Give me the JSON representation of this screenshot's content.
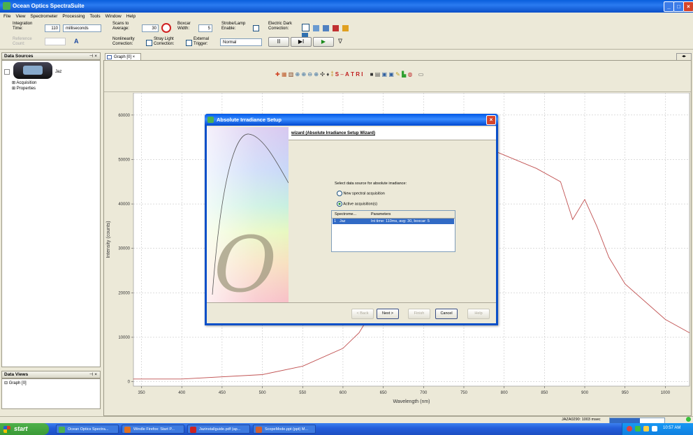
{
  "window": {
    "title": "Ocean Optics SpectraSuite",
    "controls": [
      "_",
      "□",
      "×"
    ]
  },
  "menu": [
    "File",
    "View",
    "Spectrometer",
    "Processing",
    "Tools",
    "Window",
    "Help"
  ],
  "toolbar": {
    "integration_label": "Integration\nTime:",
    "integration_value": "110",
    "integration_unit": "milliseconds",
    "scans_label": "Scans to\nAverage:",
    "scans_value": "30",
    "boxcar_label": "Boxcar\nWidth:",
    "boxcar_value": "5",
    "strobe_label": "Strobe/Lamp\nEnable:",
    "dark_label": "Electric Dark\nCorrection:",
    "nonlin_label": "Nonlinearity\nCorrection:",
    "stray_label": "Stray Light\nCorrection:",
    "trigger_label": "External\nTrigger:",
    "trigger_value": "Normal",
    "pause": "II",
    "step": "▶I",
    "play": "▶",
    "faded_label": "Reference\nCount:"
  },
  "data_sources": {
    "title": "Data Sources",
    "device": "Jaz",
    "items": [
      "Acquisition",
      "Properties"
    ]
  },
  "data_views": {
    "title": "Data Views",
    "items": [
      "Graph [0]"
    ]
  },
  "graph_tab": {
    "label": "Graph [0]"
  },
  "graph_toolbar_extra": "S",
  "graph_toolbar_text": [
    "A",
    "T",
    "R",
    "I"
  ],
  "chart_data": {
    "type": "line",
    "xlabel": "Wavelength (nm)",
    "ylabel": "Intensity (counts)",
    "xlim": [
      340,
      1030
    ],
    "ylim": [
      -1000,
      65000
    ],
    "x_ticks": [
      350,
      400,
      450,
      500,
      550,
      600,
      650,
      700,
      750,
      800,
      850,
      900,
      950,
      1000
    ],
    "y_ticks": [
      0,
      10000,
      20000,
      30000,
      40000,
      50000,
      60000
    ],
    "y_tick_labels": [
      "0",
      "10000",
      "20000",
      "30000",
      "40000",
      "50000",
      "60000"
    ],
    "grid": true,
    "series": [
      {
        "color": "#c05050",
        "x": [
          340,
          400,
          500,
          550,
          600,
          620,
          640,
          660,
          680,
          700,
          760,
          800,
          840,
          870,
          885,
          900,
          915,
          930,
          950,
          1000,
          1030
        ],
        "y": [
          600,
          600,
          1600,
          3500,
          7500,
          11000,
          17000,
          25000,
          35000,
          46000,
          54000,
          51000,
          48000,
          45000,
          36500,
          41000,
          35000,
          28000,
          22000,
          14000,
          11000
        ]
      }
    ]
  },
  "dialog": {
    "title": "Absolute Irradiance Setup",
    "header": "wizard (Absolute Irradiance Setup Wizard)",
    "prompt": "Select data source for absolute irradiance:",
    "option1": "New spectral acquisition",
    "option2": "Active acquisition(s)",
    "col1": "Spectrome...",
    "col2": "Parameters",
    "row_idx": "1",
    "row_name": "Jaz",
    "row_params": "Int time: 110ms, avg: 30, boxcar: 5",
    "buttons": {
      "back": "< Back",
      "next": "Next >",
      "finish": "Finish",
      "cancel": "Cancel",
      "help": "Help"
    }
  },
  "status": {
    "device": "JAZA0290: 1003 msec",
    "progress_fraction": 0.55
  },
  "taskbar": {
    "start": "start",
    "tasks": [
      {
        "label": "Ocean Optics Spectra...",
        "color": "#4cb050"
      },
      {
        "label": "Windle Firefox: Start P...",
        "color": "#e07020"
      },
      {
        "label": "Jazinstallguide.pdf (ap...",
        "color": "#cc2222"
      },
      {
        "label": "ScopeMode.ppt (ppt) M...",
        "color": "#d06030"
      }
    ],
    "clock": "10:57 AM"
  }
}
